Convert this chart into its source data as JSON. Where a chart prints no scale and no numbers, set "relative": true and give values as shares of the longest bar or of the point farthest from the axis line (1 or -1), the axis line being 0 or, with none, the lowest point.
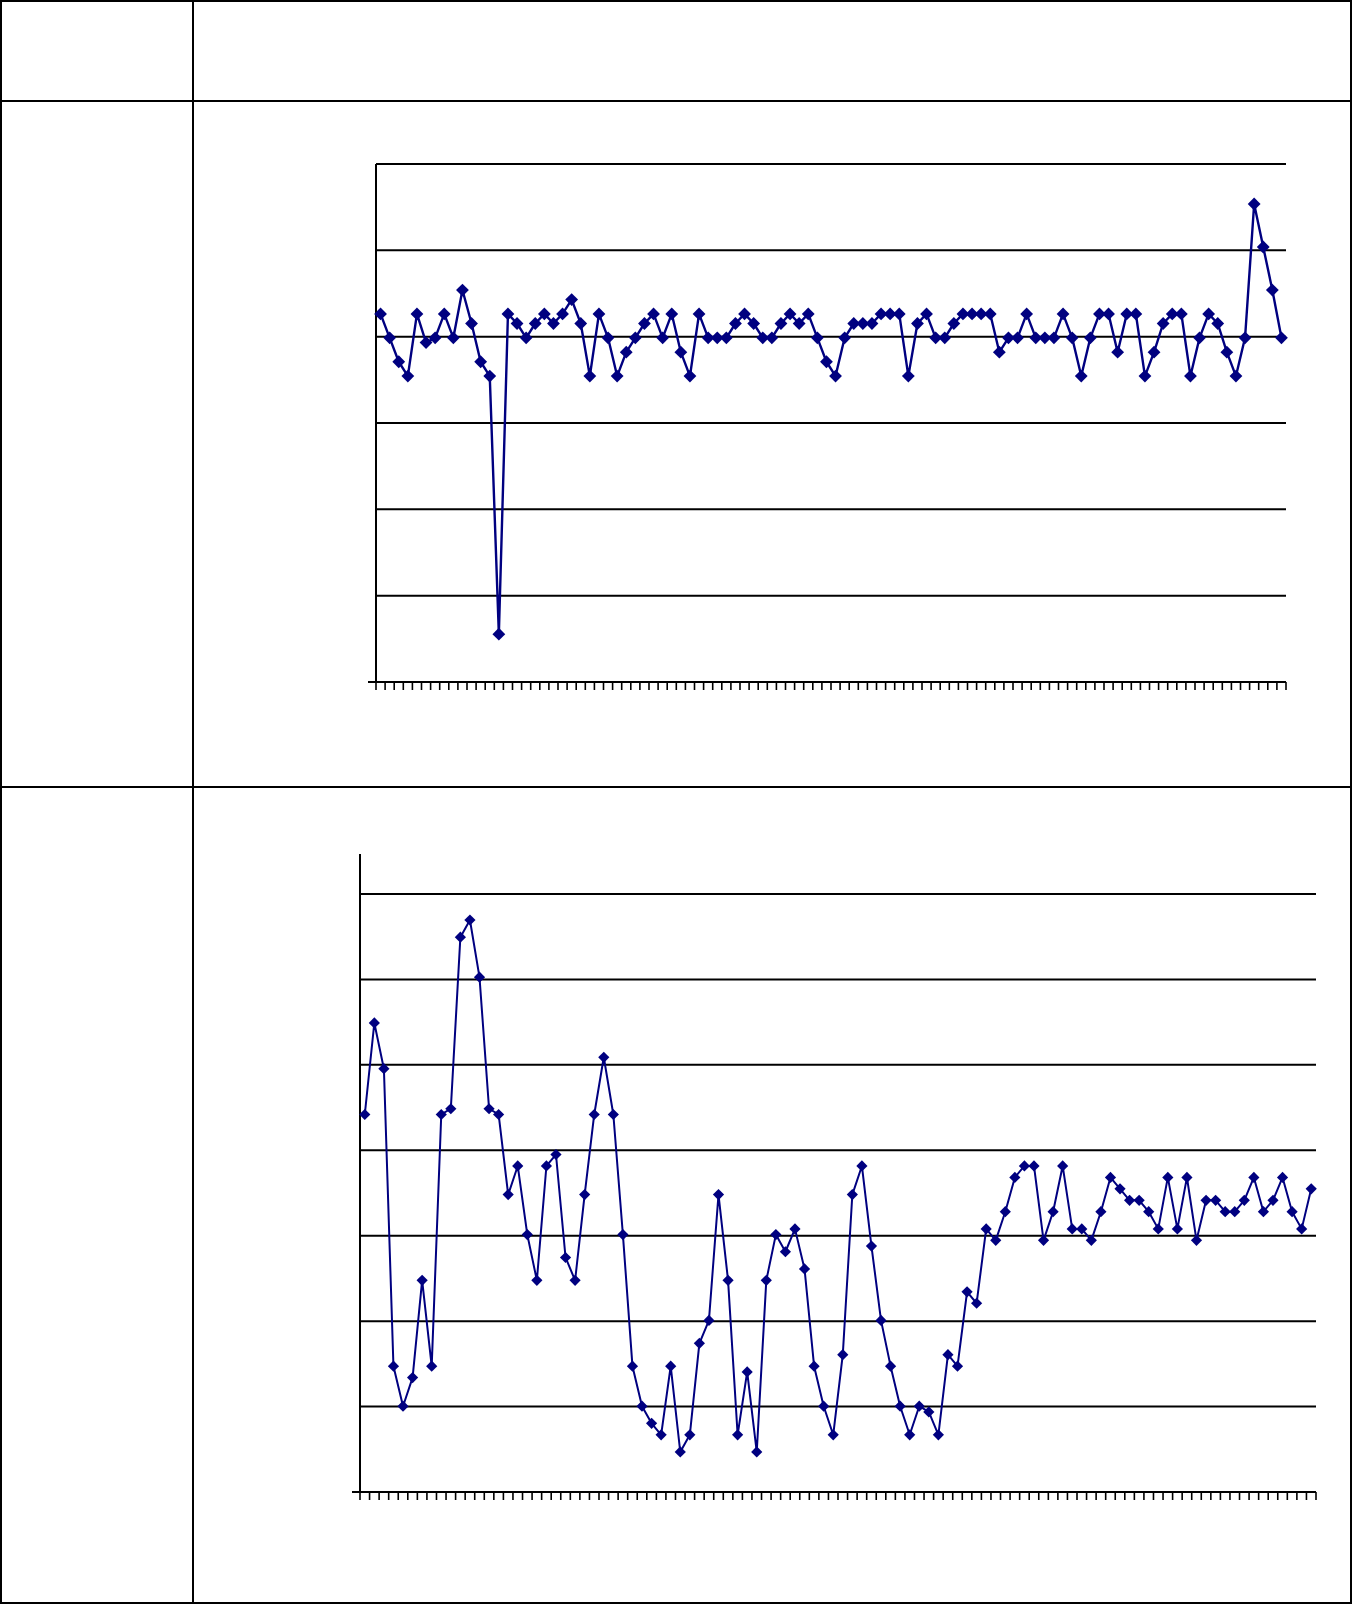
{
  "chart_data": [
    {
      "type": "line",
      "relative": true,
      "grid": "y",
      "marker": "diamond",
      "line_style": "solid",
      "categories": [
        null,
        null,
        null,
        null,
        null,
        null,
        null,
        null,
        null,
        null,
        null,
        null,
        null,
        null,
        null,
        null,
        null,
        null,
        null,
        null,
        null,
        null,
        null,
        null,
        null,
        null,
        null,
        null,
        null,
        null,
        null,
        null,
        null,
        null,
        null,
        null,
        null,
        null,
        null,
        null,
        null,
        null,
        null,
        null,
        null,
        null,
        null,
        null,
        null,
        null,
        null,
        null,
        null,
        null,
        null,
        null,
        null,
        null,
        null,
        null,
        null,
        null,
        null,
        null,
        null,
        null,
        null,
        null,
        null,
        null,
        null,
        null,
        null,
        null,
        null,
        null,
        null,
        null,
        null,
        null,
        null,
        null,
        null,
        null,
        null,
        null,
        null,
        null,
        null,
        null,
        null,
        null,
        null,
        null,
        null,
        null,
        null,
        null,
        null,
        null
      ],
      "series": [
        {
          "color": "#000080",
          "values": [
            0.77,
            0.72,
            0.67,
            0.64,
            0.77,
            0.71,
            0.72,
            0.77,
            0.72,
            0.82,
            0.75,
            0.67,
            0.64,
            0.1,
            0.77,
            0.75,
            0.72,
            0.75,
            0.77,
            0.75,
            0.77,
            0.8,
            0.75,
            0.64,
            0.77,
            0.72,
            0.64,
            0.69,
            0.72,
            0.75,
            0.77,
            0.72,
            0.77,
            0.69,
            0.64,
            0.77,
            0.72,
            0.72,
            0.72,
            0.75,
            0.77,
            0.75,
            0.72,
            0.72,
            0.75,
            0.77,
            0.75,
            0.77,
            0.72,
            0.67,
            0.64,
            0.72,
            0.75,
            0.75,
            0.75,
            0.77,
            0.77,
            0.77,
            0.64,
            0.75,
            0.77,
            0.72,
            0.72,
            0.75,
            0.77,
            0.77,
            0.77,
            0.77,
            0.69,
            0.72,
            0.72,
            0.77,
            0.72,
            0.72,
            0.72,
            0.77,
            0.72,
            0.64,
            0.72,
            0.77,
            0.77,
            0.69,
            0.77,
            0.77,
            0.64,
            0.69,
            0.75,
            0.77,
            0.77,
            0.64,
            0.72,
            0.77,
            0.75,
            0.69,
            0.64,
            0.72,
            1,
            0.91,
            0.82,
            0.72
          ]
        }
      ]
    },
    {
      "type": "line",
      "relative": true,
      "grid": "y",
      "marker": "diamond",
      "line_style": "solid",
      "categories": [
        null,
        null,
        null,
        null,
        null,
        null,
        null,
        null,
        null,
        null,
        null,
        null,
        null,
        null,
        null,
        null,
        null,
        null,
        null,
        null,
        null,
        null,
        null,
        null,
        null,
        null,
        null,
        null,
        null,
        null,
        null,
        null,
        null,
        null,
        null,
        null,
        null,
        null,
        null,
        null,
        null,
        null,
        null,
        null,
        null,
        null,
        null,
        null,
        null,
        null,
        null,
        null,
        null,
        null,
        null,
        null,
        null,
        null,
        null,
        null,
        null,
        null,
        null,
        null,
        null,
        null,
        null,
        null,
        null,
        null,
        null,
        null,
        null,
        null,
        null,
        null,
        null,
        null,
        null,
        null,
        null,
        null,
        null,
        null,
        null,
        null,
        null,
        null,
        null,
        null,
        null,
        null,
        null,
        null,
        null,
        null,
        null,
        null,
        null,
        null
      ],
      "series": [
        {
          "color": "#000080",
          "values": [
            0.66,
            0.82,
            0.74,
            0.22,
            0.15,
            0.2,
            0.37,
            0.22,
            0.66,
            0.67,
            0.97,
            1,
            0.9,
            0.67,
            0.66,
            0.52,
            0.57,
            0.45,
            0.37,
            0.57,
            0.59,
            0.41,
            0.37,
            0.52,
            0.66,
            0.76,
            0.66,
            0.45,
            0.22,
            0.15,
            0.12,
            0.1,
            0.22,
            0.07,
            0.1,
            0.26,
            0.3,
            0.52,
            0.37,
            0.1,
            0.21,
            0.07,
            0.37,
            0.45,
            0.42,
            0.46,
            0.39,
            0.22,
            0.15,
            0.1,
            0.24,
            0.52,
            0.57,
            0.43,
            0.3,
            0.22,
            0.15,
            0.1,
            0.15,
            0.14,
            0.1,
            0.24,
            0.22,
            0.35,
            0.33,
            0.46,
            0.44,
            0.49,
            0.55,
            0.57,
            0.57,
            0.44,
            0.49,
            0.57,
            0.46,
            0.46,
            0.44,
            0.49,
            0.55,
            0.53,
            0.51,
            0.51,
            0.49,
            0.46,
            0.55,
            0.46,
            0.55,
            0.44,
            0.51,
            0.51,
            0.49,
            0.49,
            0.51,
            0.55,
            0.49,
            0.51,
            0.55,
            0.49,
            0.46,
            0.53
          ]
        }
      ]
    }
  ]
}
